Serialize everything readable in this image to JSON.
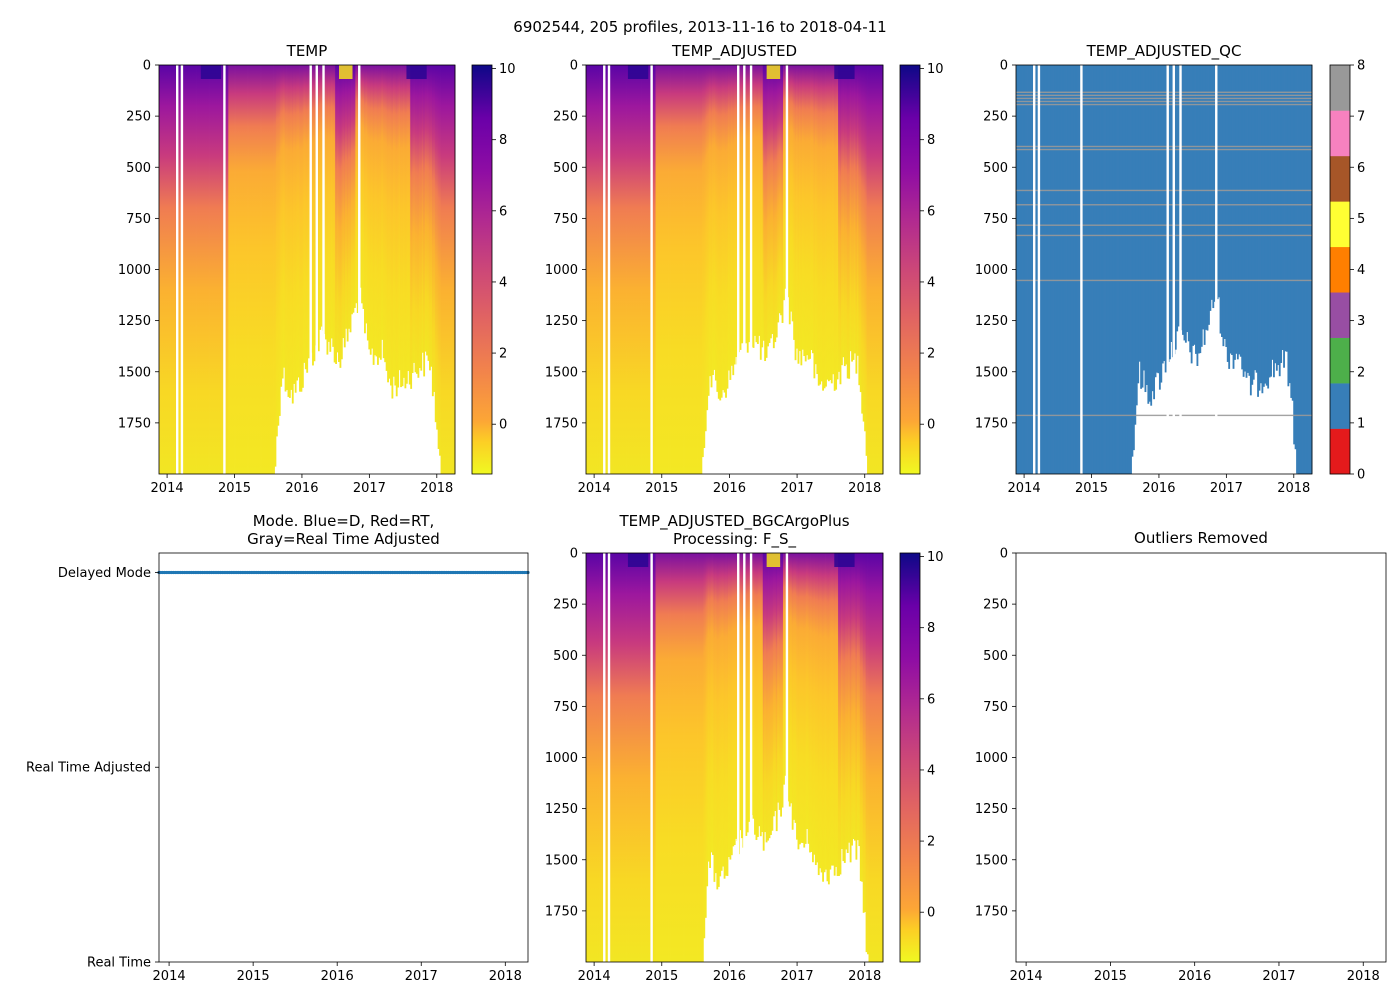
{
  "figure": {
    "suptitle": "6902544, 205 profiles, 2013-11-16 to 2018-04-11"
  },
  "chart_data": [
    {
      "id": "temp",
      "type": "heatmap",
      "title": "TEMP",
      "xlabel": "",
      "ylabel": "",
      "x_ticks": [
        "2014",
        "2015",
        "2016",
        "2017",
        "2018"
      ],
      "x_tick_values": [
        2014,
        2015,
        2016,
        2017,
        2018
      ],
      "xlim": [
        2013.88,
        2018.27
      ],
      "y_ticks": [
        "0",
        "250",
        "500",
        "750",
        "1000",
        "1250",
        "1500",
        "1750"
      ],
      "y_tick_values": [
        0,
        250,
        500,
        750,
        1000,
        1250,
        1500,
        1750
      ],
      "ylim": [
        0,
        2000
      ],
      "y_inverted": true,
      "colorbar": {
        "colormap": "plasma_r",
        "range": [
          -1.4,
          10.1
        ],
        "ticks": [
          "0",
          "2",
          "4",
          "6",
          "8",
          "10"
        ],
        "tick_values": [
          0,
          2,
          4,
          6,
          8,
          10
        ]
      },
      "bottom_depth_profile": "fill_to_bottom_until_2015.6_then_1300_1750_max_depth"
    },
    {
      "id": "temp-adjusted",
      "type": "heatmap",
      "title": "TEMP_ADJUSTED",
      "xlabel": "",
      "ylabel": "",
      "x_ticks": [
        "2014",
        "2015",
        "2016",
        "2017",
        "2018"
      ],
      "x_tick_values": [
        2014,
        2015,
        2016,
        2017,
        2018
      ],
      "xlim": [
        2013.88,
        2018.27
      ],
      "y_ticks": [
        "0",
        "250",
        "500",
        "750",
        "1000",
        "1250",
        "1500",
        "1750"
      ],
      "y_tick_values": [
        0,
        250,
        500,
        750,
        1000,
        1250,
        1500,
        1750
      ],
      "ylim": [
        0,
        2000
      ],
      "y_inverted": true,
      "colorbar": {
        "colormap": "plasma_r",
        "range": [
          -1.4,
          10.1
        ],
        "ticks": [
          "0",
          "2",
          "4",
          "6",
          "8",
          "10"
        ],
        "tick_values": [
          0,
          2,
          4,
          6,
          8,
          10
        ]
      }
    },
    {
      "id": "temp-adjusted-qc",
      "type": "heatmap",
      "title": "TEMP_ADJUSTED_QC",
      "xlabel": "",
      "ylabel": "",
      "x_ticks": [
        "2014",
        "2015",
        "2016",
        "2017",
        "2018"
      ],
      "x_tick_values": [
        2014,
        2015,
        2016,
        2017,
        2018
      ],
      "xlim": [
        2013.88,
        2018.27
      ],
      "y_ticks": [
        "0",
        "250",
        "500",
        "750",
        "1000",
        "1250",
        "1500",
        "1750"
      ],
      "y_tick_values": [
        0,
        250,
        500,
        750,
        1000,
        1250,
        1500,
        1750
      ],
      "ylim": [
        0,
        2000
      ],
      "y_inverted": true,
      "dominant_qc_flag": 1,
      "flag8_depth_bands": [
        130,
        145,
        160,
        175,
        190,
        395,
        410,
        610,
        680,
        780,
        830,
        1050,
        1710
      ],
      "colorbar": {
        "colormap": "Set1",
        "ticks": [
          "0",
          "1",
          "2",
          "3",
          "4",
          "5",
          "6",
          "7",
          "8"
        ],
        "tick_values": [
          0,
          1,
          2,
          3,
          4,
          5,
          6,
          7,
          8
        ],
        "colors": [
          "#e41a1c",
          "#377eb8",
          "#4daf4a",
          "#984ea3",
          "#ff7f00",
          "#ffff33",
          "#a65628",
          "#f781bf",
          "#999999"
        ]
      }
    },
    {
      "id": "mode",
      "type": "scatter",
      "title": "Mode. Blue=D, Red=RT,",
      "title_line2": "Gray=Real Time Adjusted",
      "xlabel": "",
      "ylabel": "",
      "x_ticks": [
        "2014",
        "2015",
        "2016",
        "2017",
        "2018"
      ],
      "x_tick_values": [
        2014,
        2015,
        2016,
        2017,
        2018
      ],
      "xlim": [
        2013.88,
        2018.27
      ],
      "y_ticks": [
        "Delayed Mode",
        "Real Time Adjusted",
        "Real Time"
      ],
      "y_tick_values": [
        2,
        1,
        0
      ],
      "ylim": [
        0,
        2.1
      ],
      "series": [
        {
          "name": "Delayed Mode",
          "color": "#1f77b4",
          "y": 2,
          "x_range": [
            2013.88,
            2018.27
          ],
          "count": 205
        }
      ]
    },
    {
      "id": "temp-adjusted-bgc",
      "type": "heatmap",
      "title": "TEMP_ADJUSTED_BGCArgoPlus",
      "title_line2": "Processing: F_S_",
      "xlabel": "",
      "ylabel": "",
      "x_ticks": [
        "2014",
        "2015",
        "2016",
        "2017",
        "2018"
      ],
      "x_tick_values": [
        2014,
        2015,
        2016,
        2017,
        2018
      ],
      "xlim": [
        2013.88,
        2018.27
      ],
      "y_ticks": [
        "0",
        "250",
        "500",
        "750",
        "1000",
        "1250",
        "1500",
        "1750"
      ],
      "y_tick_values": [
        0,
        250,
        500,
        750,
        1000,
        1250,
        1500,
        1750
      ],
      "ylim": [
        0,
        2000
      ],
      "y_inverted": true,
      "colorbar": {
        "colormap": "plasma_r",
        "range": [
          -1.4,
          10.1
        ],
        "ticks": [
          "0",
          "2",
          "4",
          "6",
          "8",
          "10"
        ],
        "tick_values": [
          0,
          2,
          4,
          6,
          8,
          10
        ]
      }
    },
    {
      "id": "outliers",
      "type": "scatter",
      "title": "Outliers Removed",
      "xlabel": "",
      "ylabel": "",
      "x_ticks": [
        "2014",
        "2015",
        "2016",
        "2017",
        "2018"
      ],
      "x_tick_values": [
        2014,
        2015,
        2016,
        2017,
        2018
      ],
      "xlim": [
        2013.88,
        2018.27
      ],
      "y_ticks": [
        "0",
        "250",
        "500",
        "750",
        "1000",
        "1250",
        "1500",
        "1750"
      ],
      "y_tick_values": [
        0,
        250,
        500,
        750,
        1000,
        1250,
        1500,
        1750
      ],
      "ylim": [
        0,
        2000
      ],
      "y_inverted": true,
      "series": []
    }
  ]
}
